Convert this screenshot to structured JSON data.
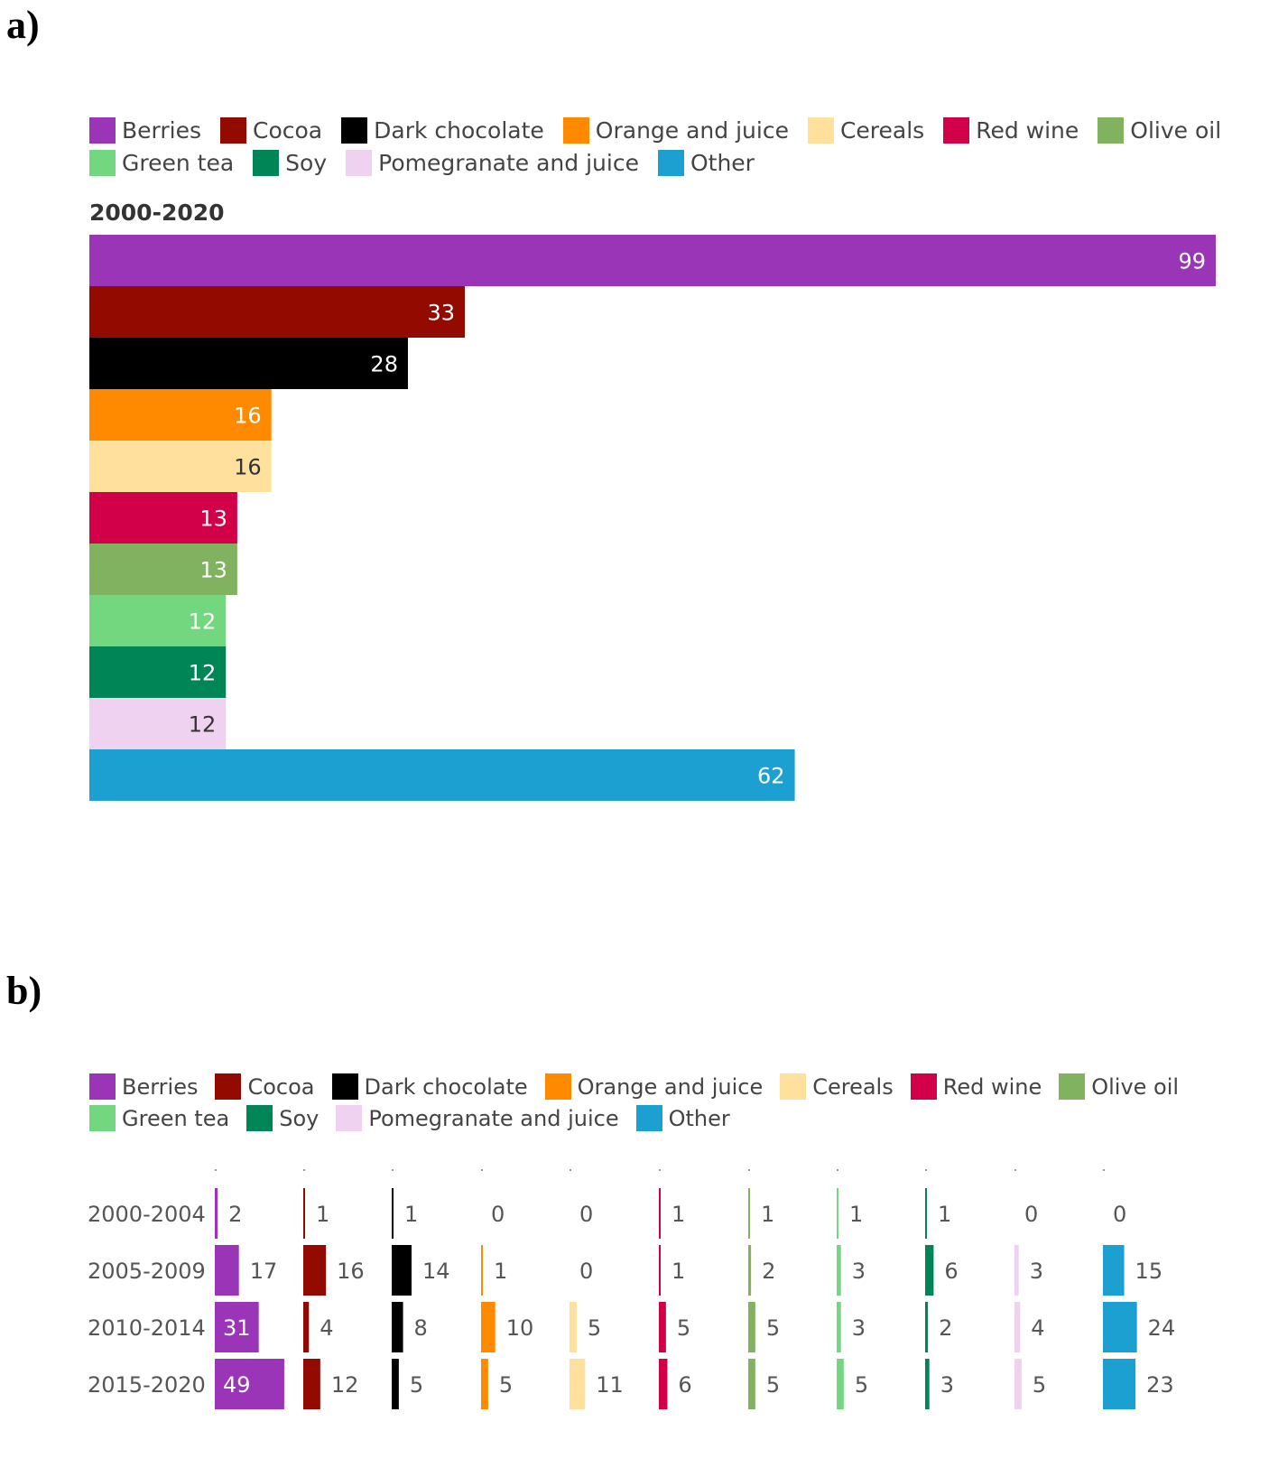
{
  "panels": {
    "a_label": "a)",
    "b_label": "b)"
  },
  "legend": [
    {
      "name": "Berries",
      "color": "#9a35b8"
    },
    {
      "name": "Cocoa",
      "color": "#920a00"
    },
    {
      "name": "Dark chocolate",
      "color": "#000000"
    },
    {
      "name": "Orange and juice",
      "color": "#ff8a00"
    },
    {
      "name": "Cereals",
      "color": "#ffe09c"
    },
    {
      "name": "Red wine",
      "color": "#d20049"
    },
    {
      "name": "Olive oil",
      "color": "#80b25f"
    },
    {
      "name": "Green tea",
      "color": "#72d77f"
    },
    {
      "name": "Soy",
      "color": "#008656"
    },
    {
      "name": "Pomegranate and juice",
      "color": "#efd2f0"
    },
    {
      "name": "Other",
      "color": "#1ba0d1"
    }
  ],
  "chart_data": [
    {
      "type": "bar",
      "orientation": "horizontal",
      "title": "2000-2020",
      "categories": [
        "Berries",
        "Cocoa",
        "Dark chocolate",
        "Orange and juice",
        "Cereals",
        "Red wine",
        "Olive oil",
        "Green tea",
        "Soy",
        "Pomegranate and juice",
        "Other"
      ],
      "values": [
        99,
        33,
        28,
        16,
        16,
        13,
        13,
        12,
        12,
        12,
        62
      ],
      "xlim": [
        0,
        99
      ],
      "legend": "top"
    },
    {
      "type": "bar",
      "orientation": "horizontal",
      "layout": "small-multiples",
      "periods": [
        "2000-2004",
        "2005-2009",
        "2010-2014",
        "2015-2020"
      ],
      "categories": [
        "Berries",
        "Cocoa",
        "Dark chocolate",
        "Orange and juice",
        "Cereals",
        "Red wine",
        "Olive oil",
        "Green tea",
        "Soy",
        "Pomegranate and juice",
        "Other"
      ],
      "series": [
        {
          "name": "2000-2004",
          "values": [
            2,
            1,
            1,
            0,
            0,
            1,
            1,
            1,
            1,
            0,
            0
          ]
        },
        {
          "name": "2005-2009",
          "values": [
            17,
            16,
            14,
            1,
            0,
            1,
            2,
            3,
            6,
            3,
            15
          ]
        },
        {
          "name": "2010-2014",
          "values": [
            31,
            4,
            8,
            10,
            5,
            5,
            5,
            3,
            2,
            4,
            24
          ]
        },
        {
          "name": "2015-2020",
          "values": [
            49,
            12,
            5,
            5,
            11,
            6,
            5,
            5,
            3,
            5,
            23
          ]
        }
      ],
      "legend": "top"
    }
  ]
}
